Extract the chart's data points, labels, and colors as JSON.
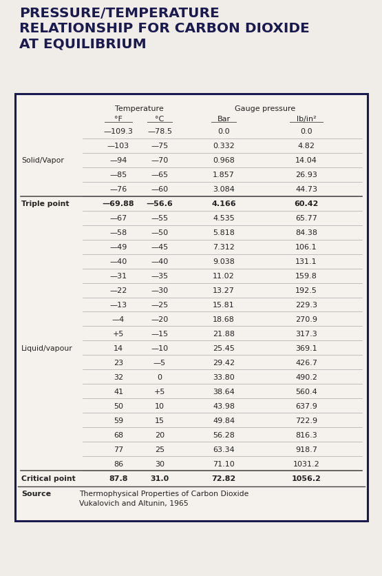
{
  "title": "PRESSURE/TEMPERATURE\nRELATIONSHIP FOR CARBON DIOXIDE\nAT EQUILIBRIUM",
  "title_color": "#1a1a4e",
  "bg_color": "#f0ede8",
  "box_bg": "#f5f2ed",
  "header1": "Temperature",
  "header2": "Gauge pressure",
  "col_headers": [
    "°F",
    "°C",
    "Bar",
    "lb/in²"
  ],
  "rows": [
    {
      "label": "",
      "bold": false,
      "top_line": false,
      "f": "—109.3",
      "c": "—78.5",
      "bar": "0.0",
      "psi": "0.0"
    },
    {
      "label": "",
      "bold": false,
      "top_line": false,
      "f": "—103",
      "c": "—75",
      "bar": "0.332",
      "psi": "4.82"
    },
    {
      "label": "Solid/Vapor",
      "bold": false,
      "top_line": false,
      "f": "—94",
      "c": "—70",
      "bar": "0.968",
      "psi": "14.04"
    },
    {
      "label": "",
      "bold": false,
      "top_line": false,
      "f": "—85",
      "c": "—65",
      "bar": "1.857",
      "psi": "26.93"
    },
    {
      "label": "",
      "bold": false,
      "top_line": false,
      "f": "—76",
      "c": "—60",
      "bar": "3.084",
      "psi": "44.73"
    },
    {
      "label": "Triple point",
      "bold": true,
      "top_line": true,
      "f": "—69.88",
      "c": "—56.6",
      "bar": "4.166",
      "psi": "60.42"
    },
    {
      "label": "",
      "bold": false,
      "top_line": false,
      "f": "—67",
      "c": "—55",
      "bar": "4.535",
      "psi": "65.77"
    },
    {
      "label": "",
      "bold": false,
      "top_line": false,
      "f": "—58",
      "c": "—50",
      "bar": "5.818",
      "psi": "84.38"
    },
    {
      "label": "",
      "bold": false,
      "top_line": false,
      "f": "—49",
      "c": "—45",
      "bar": "7.312",
      "psi": "106.1"
    },
    {
      "label": "",
      "bold": false,
      "top_line": false,
      "f": "—40",
      "c": "—40",
      "bar": "9.038",
      "psi": "131.1"
    },
    {
      "label": "",
      "bold": false,
      "top_line": false,
      "f": "—31",
      "c": "—35",
      "bar": "11.02",
      "psi": "159.8"
    },
    {
      "label": "",
      "bold": false,
      "top_line": false,
      "f": "—22",
      "c": "—30",
      "bar": "13.27",
      "psi": "192.5"
    },
    {
      "label": "",
      "bold": false,
      "top_line": false,
      "f": "—13",
      "c": "—25",
      "bar": "15.81",
      "psi": "229.3"
    },
    {
      "label": "",
      "bold": false,
      "top_line": false,
      "f": "—4",
      "c": "—20",
      "bar": "18.68",
      "psi": "270.9"
    },
    {
      "label": "",
      "bold": false,
      "top_line": false,
      "f": "+5",
      "c": "—15",
      "bar": "21.88",
      "psi": "317.3"
    },
    {
      "label": "Liquid/vapour",
      "bold": false,
      "top_line": false,
      "f": "14",
      "c": "—10",
      "bar": "25.45",
      "psi": "369.1"
    },
    {
      "label": "",
      "bold": false,
      "top_line": false,
      "f": "23",
      "c": "—5",
      "bar": "29.42",
      "psi": "426.7"
    },
    {
      "label": "",
      "bold": false,
      "top_line": false,
      "f": "32",
      "c": "0",
      "bar": "33.80",
      "psi": "490.2"
    },
    {
      "label": "",
      "bold": false,
      "top_line": false,
      "f": "41",
      "c": "+5",
      "bar": "38.64",
      "psi": "560.4"
    },
    {
      "label": "",
      "bold": false,
      "top_line": false,
      "f": "50",
      "c": "10",
      "bar": "43.98",
      "psi": "637.9"
    },
    {
      "label": "",
      "bold": false,
      "top_line": false,
      "f": "59",
      "c": "15",
      "bar": "49.84",
      "psi": "722.9"
    },
    {
      "label": "",
      "bold": false,
      "top_line": false,
      "f": "68",
      "c": "20",
      "bar": "56.28",
      "psi": "816.3"
    },
    {
      "label": "",
      "bold": false,
      "top_line": false,
      "f": "77",
      "c": "25",
      "bar": "63.34",
      "psi": "918.7"
    },
    {
      "label": "",
      "bold": false,
      "top_line": false,
      "f": "86",
      "c": "30",
      "bar": "71.10",
      "psi": "1031.2"
    },
    {
      "label": "Critical point",
      "bold": true,
      "top_line": true,
      "f": "87.8",
      "c": "31.0",
      "bar": "72.82",
      "psi": "1056.2"
    }
  ],
  "source_label": "Source",
  "source_text": "Thermophysical Properties of Carbon Dioxide\nVukalovich and Altunin, 1965"
}
